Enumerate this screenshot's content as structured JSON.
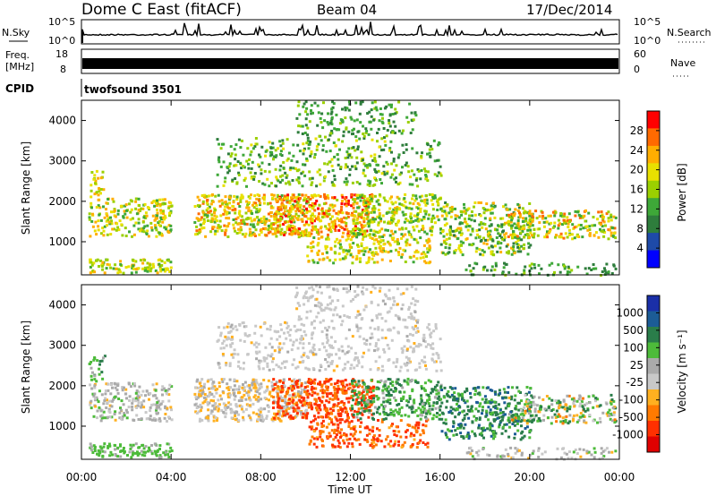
{
  "header": {
    "title": "Dome C East (fitACF)",
    "beam": "Beam 04",
    "date": "17/Dec/2014"
  },
  "panel_labels": {
    "nsky": "N.Sky",
    "nsearch": "N.Search",
    "freq_line1": "Freq.",
    "freq_line2": "[MHz]",
    "nave": "Nave",
    "cpid": "CPID",
    "cpid_value": "twofsound 3501"
  },
  "chart_data": [
    {
      "id": "noise",
      "type": "line",
      "left_ticks": [
        "10^5",
        "10^0"
      ],
      "right_ticks": [
        "10^5",
        "10^0"
      ],
      "description_values": {
        "baseline": 0.35,
        "max": 1.0
      }
    },
    {
      "id": "frequency",
      "type": "area",
      "left_ticks": [
        "18",
        "8"
      ],
      "right_ticks": [
        "60",
        "0"
      ],
      "band": [
        0.38,
        0.62
      ]
    },
    {
      "id": "power",
      "type": "heatmap",
      "ylabel": "Slant Range [km]",
      "ylim": [
        180,
        4500
      ],
      "yticks": [
        1000,
        2000,
        3000,
        4000
      ],
      "xlim": [
        0,
        24
      ],
      "colorbar_label": "Power [dB]",
      "colorbar_ticks": [
        "28",
        "24",
        "20",
        "16",
        "12",
        "8",
        "4"
      ],
      "colorbar_colors": [
        "#ff0000",
        "#ff6a00",
        "#ffae00",
        "#e8e000",
        "#9bd000",
        "#3ea838",
        "#2e7d3c",
        "#1e4aa8",
        "#0000ff"
      ]
    },
    {
      "id": "velocity",
      "type": "heatmap",
      "ylabel": "Slant Range [km]",
      "ylim": [
        180,
        4500
      ],
      "yticks": [
        1000,
        2000,
        3000,
        4000
      ],
      "xlim": [
        0,
        24
      ],
      "xticks": [
        "00:00",
        "04:00",
        "08:00",
        "12:00",
        "16:00",
        "20:00",
        "00:00"
      ],
      "xlabel": "Time UT",
      "colorbar_label": "Velocity [m s⁻¹]",
      "colorbar_ticks": [
        "1000",
        "500",
        "100",
        "25",
        "-25",
        "-100",
        "-500",
        "-1000"
      ],
      "colorbar_colors": [
        "#1a2fa8",
        "#1c5c96",
        "#2a7d4a",
        "#4dbb3a",
        "#aaaaaa",
        "#c8c8c8",
        "#ffb020",
        "#ff7a00",
        "#ff3000",
        "#e00000"
      ]
    }
  ],
  "features": [
    {
      "t0": 0.3,
      "t1": 4.0,
      "r0": 250,
      "r1": 600,
      "dens": 0.75,
      "pow": [
        10,
        22
      ],
      "vel": [
        40,
        250
      ]
    },
    {
      "t0": 0.3,
      "t1": 4.0,
      "r0": 1150,
      "r1": 2100,
      "dens": 0.55,
      "pow": [
        8,
        24
      ],
      "vel": [
        -40,
        120
      ]
    },
    {
      "t0": 0.3,
      "t1": 1.0,
      "r0": 2100,
      "r1": 2800,
      "dens": 0.45,
      "pow": [
        12,
        24
      ],
      "vel": [
        50,
        300
      ]
    },
    {
      "t0": 5.0,
      "t1": 10.0,
      "r0": 1150,
      "r1": 2200,
      "dens": 0.7,
      "pow": [
        10,
        26
      ],
      "vel": [
        -60,
        60
      ]
    },
    {
      "t0": 8.5,
      "t1": 13.0,
      "r0": 1200,
      "r1": 2200,
      "dens": 0.75,
      "pow": [
        14,
        30
      ],
      "vel": [
        -500,
        -100
      ]
    },
    {
      "t0": 10.0,
      "t1": 15.5,
      "r0": 500,
      "r1": 1200,
      "dens": 0.5,
      "pow": [
        10,
        24
      ],
      "vel": [
        -400,
        -80
      ]
    },
    {
      "t0": 6.0,
      "t1": 16.0,
      "r0": 2400,
      "r1": 3600,
      "dens": 0.3,
      "pow": [
        4,
        18
      ],
      "vel": [
        -30,
        30
      ]
    },
    {
      "t0": 9.5,
      "t1": 15.0,
      "r0": 3600,
      "r1": 4500,
      "dens": 0.3,
      "pow": [
        4,
        14
      ],
      "vel": [
        -30,
        30
      ]
    },
    {
      "t0": 12.0,
      "t1": 16.0,
      "r0": 1200,
      "r1": 2200,
      "dens": 0.6,
      "pow": [
        8,
        22
      ],
      "vel": [
        40,
        400
      ]
    },
    {
      "t0": 16.0,
      "t1": 20.0,
      "r0": 700,
      "r1": 2000,
      "dens": 0.55,
      "pow": [
        6,
        22
      ],
      "vel": [
        150,
        600
      ]
    },
    {
      "t0": 19.0,
      "t1": 23.8,
      "r0": 1100,
      "r1": 1800,
      "dens": 0.6,
      "pow": [
        8,
        26
      ],
      "vel": [
        -150,
        400
      ]
    },
    {
      "t0": 17.0,
      "t1": 23.8,
      "r0": 200,
      "r1": 500,
      "dens": 0.35,
      "pow": [
        4,
        14
      ],
      "vel": [
        -40,
        120
      ]
    }
  ]
}
